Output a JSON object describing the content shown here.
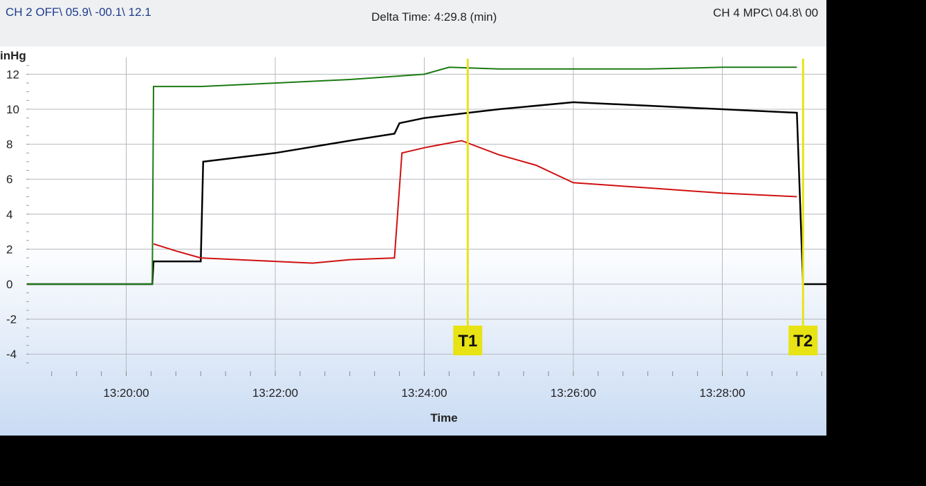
{
  "header": {
    "ch2_readout": "CH 2 OFF\\ 05.9\\ -00.1\\ 12.1",
    "delta_time": "Delta Time: 4:29.8 (min)",
    "ch4_readout": "CH 4 MPC\\ 04.8\\ 00"
  },
  "chart_data": {
    "type": "line",
    "title": "",
    "xlabel": "Time",
    "ylabel": "inHg",
    "ylim": [
      -5,
      13
    ],
    "xlim": [
      "13:18:40",
      "13:29:40"
    ],
    "y_ticks": [
      "12",
      "10",
      "8",
      "6",
      "4",
      "2",
      "0",
      "-2",
      "-4"
    ],
    "x_ticks": [
      "13:20:00",
      "13:22:00",
      "13:24:00",
      "13:26:00",
      "13:28:00"
    ],
    "grid": true,
    "series": [
      {
        "color": "#1a7a12",
        "points": [
          [
            "13:18:40",
            0
          ],
          [
            "13:20:21",
            0
          ],
          [
            "13:20:22",
            11.3
          ],
          [
            "13:21:00",
            11.3
          ],
          [
            "13:22:00",
            11.5
          ],
          [
            "13:23:00",
            11.7
          ],
          [
            "13:24:00",
            12.0
          ],
          [
            "13:24:20",
            12.4
          ],
          [
            "13:25:00",
            12.3
          ],
          [
            "13:26:00",
            12.3
          ],
          [
            "13:27:00",
            12.3
          ],
          [
            "13:28:00",
            12.4
          ],
          [
            "13:29:00",
            12.4
          ]
        ]
      },
      {
        "color": "#000000",
        "points": [
          [
            "13:18:40",
            0
          ],
          [
            "13:20:21",
            0
          ],
          [
            "13:20:22",
            1.3
          ],
          [
            "13:21:00",
            1.3
          ],
          [
            "13:21:02",
            7.0
          ],
          [
            "13:22:00",
            7.5
          ],
          [
            "13:23:00",
            8.2
          ],
          [
            "13:23:36",
            8.6
          ],
          [
            "13:23:40",
            9.2
          ],
          [
            "13:24:00",
            9.5
          ],
          [
            "13:25:00",
            10.0
          ],
          [
            "13:26:00",
            10.4
          ],
          [
            "13:27:00",
            10.2
          ],
          [
            "13:28:00",
            10.0
          ],
          [
            "13:29:00",
            9.8
          ],
          [
            "13:29:05",
            0
          ],
          [
            "13:29:40",
            0
          ]
        ]
      },
      {
        "color": "#d01010",
        "points": [
          [
            "13:20:22",
            2.3
          ],
          [
            "13:20:40",
            1.9
          ],
          [
            "13:21:00",
            1.5
          ],
          [
            "13:21:30",
            1.4
          ],
          [
            "13:22:00",
            1.3
          ],
          [
            "13:22:30",
            1.2
          ],
          [
            "13:23:00",
            1.4
          ],
          [
            "13:23:36",
            1.5
          ],
          [
            "13:23:42",
            7.5
          ],
          [
            "13:24:00",
            7.8
          ],
          [
            "13:24:30",
            8.2
          ],
          [
            "13:25:00",
            7.4
          ],
          [
            "13:25:30",
            6.8
          ],
          [
            "13:26:00",
            5.8
          ],
          [
            "13:27:00",
            5.5
          ],
          [
            "13:28:00",
            5.2
          ],
          [
            "13:29:00",
            5.0
          ]
        ]
      }
    ]
  },
  "cursors": [
    {
      "label": "T1",
      "time": "13:24:35",
      "color": "#e8e314"
    },
    {
      "label": "T2",
      "time": "13:29:05",
      "color": "#e8e314"
    }
  ]
}
